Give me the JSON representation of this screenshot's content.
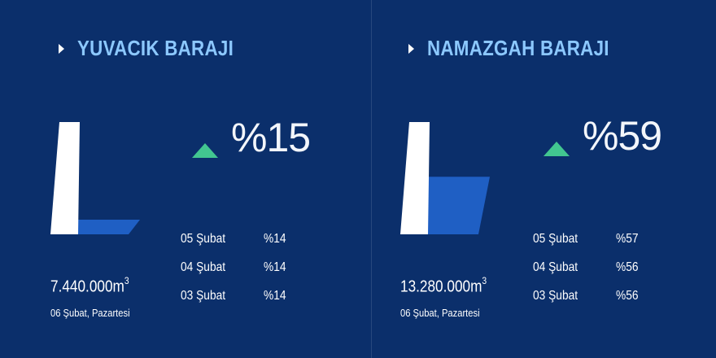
{
  "dams": [
    {
      "name": "YUVACIK BARAJI",
      "current_percent": "%15",
      "fill_fraction": 0.15,
      "trend": "up",
      "volume": "7.440.000m",
      "volume_unit_exp": "3",
      "date": "06 Şubat, Pazartesi",
      "history": [
        {
          "date": "05 Şubat",
          "value": "%14"
        },
        {
          "date": "04 Şubat",
          "value": "%14"
        },
        {
          "date": "03 Şubat",
          "value": "%14"
        }
      ]
    },
    {
      "name": "NAMAZGAH BARAJI",
      "current_percent": "%59",
      "fill_fraction": 0.59,
      "trend": "up",
      "volume": "13.280.000m",
      "volume_unit_exp": "3",
      "date": "06 Şubat, Pazartesi",
      "history": [
        {
          "date": "05 Şubat",
          "value": "%57"
        },
        {
          "date": "04 Şubat",
          "value": "%56"
        },
        {
          "date": "03 Şubat",
          "value": "%56"
        }
      ]
    }
  ],
  "colors": {
    "background": "#0b2f6b",
    "title": "#8cc8ff",
    "water": "#1f5fc4",
    "trend_up": "#42c690"
  },
  "icons": {
    "title_marker": "caret-right-icon",
    "trend": "triangle-up-icon",
    "dam": "dam-wall-icon"
  }
}
